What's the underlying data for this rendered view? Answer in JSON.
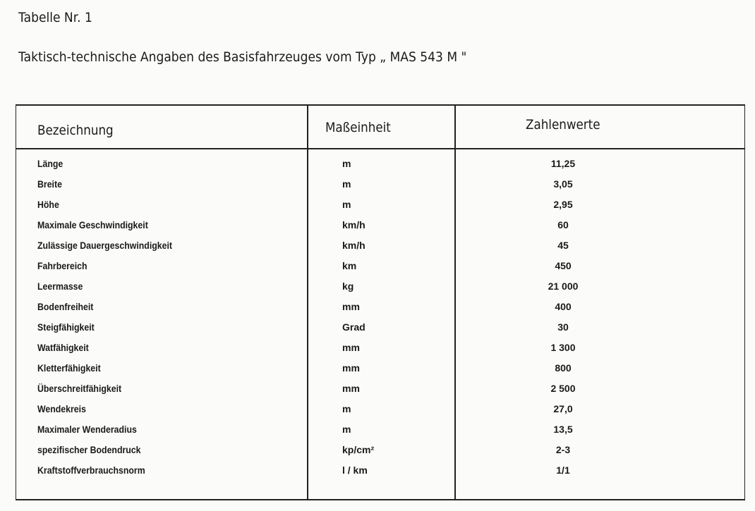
{
  "document": {
    "title": "Tabelle  Nr. 1",
    "subtitle": "Taktisch-technische Angaben des Basisfahrzeuges vom Typ „ MAS 543 M \""
  },
  "table": {
    "headers": [
      "Bezeichnung",
      "Maßeinheit",
      "Zahlenwerte"
    ],
    "rows": [
      [
        "Länge",
        "m",
        "11,25"
      ],
      [
        "Breite",
        "m",
        "3,05"
      ],
      [
        "Höhe",
        "m",
        "2,95"
      ],
      [
        "Maximale  Geschwindigkeit",
        "km/h",
        "60"
      ],
      [
        "Zulässige  Dauergeschwindigkeit",
        "km/h",
        "45"
      ],
      [
        "Fahrbereich",
        "km",
        "450"
      ],
      [
        "Leermasse",
        "kg",
        "21 000"
      ],
      [
        "Bodenfreiheit",
        "mm",
        "400"
      ],
      [
        "Steigfähigkeit",
        "Grad",
        "30"
      ],
      [
        "Watfähigkeit",
        "mm",
        "1 300"
      ],
      [
        "Kletterfähigkeit",
        "mm",
        "800"
      ],
      [
        "Überschreitfähigkeit",
        "mm",
        "2 500"
      ],
      [
        "Wendekreis",
        "m",
        "27,0"
      ],
      [
        "Maximaler  Wenderadius",
        "m",
        "13,5"
      ],
      [
        "spezifischer Bodendruck",
        "kp/cm²",
        "2-3"
      ],
      [
        "Kraftstoffverbrauchsnorm",
        "l / km",
        "1/1"
      ]
    ]
  }
}
